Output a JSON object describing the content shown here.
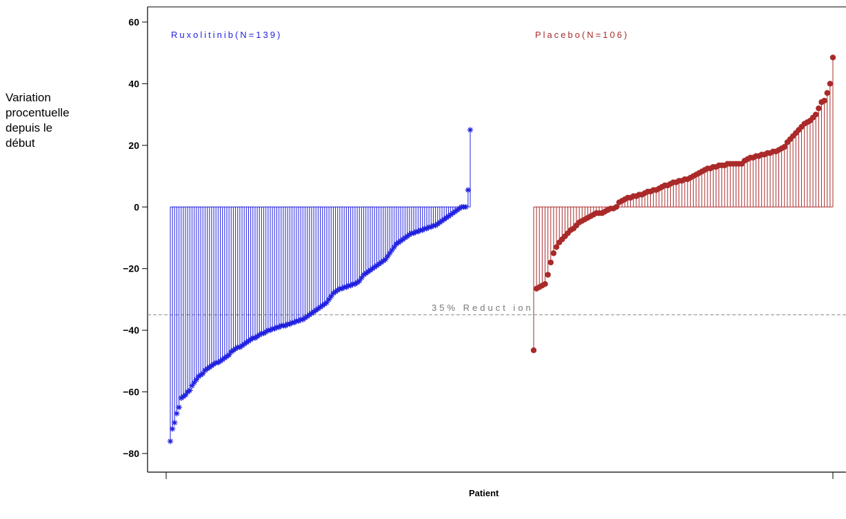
{
  "chart_data": {
    "type": "bar",
    "ylabel_lines": [
      "Variation",
      "procentuelle",
      "depuis le",
      "début"
    ],
    "xlabel": "Patient",
    "ylim": [
      -80,
      60
    ],
    "yticks": [
      60,
      40,
      20,
      0,
      -20,
      -40,
      -60,
      -80
    ],
    "reference_line": {
      "value": -35,
      "label": "35% Reduct ion"
    },
    "series": [
      {
        "name": "Ruxolitinib(N=139)",
        "color": "#1f1fe0",
        "marker": "asterisk",
        "values": [
          -76,
          -72,
          -70,
          -67,
          -65,
          -62,
          -61.5,
          -61,
          -60,
          -59.5,
          -58,
          -57,
          -56,
          -55,
          -54.5,
          -54,
          -53,
          -52.5,
          -52,
          -51.5,
          -51,
          -50.5,
          -50.5,
          -50,
          -49.5,
          -49,
          -48.5,
          -48,
          -47,
          -46.5,
          -46,
          -45.5,
          -45.5,
          -45,
          -44.5,
          -44,
          -43.5,
          -43,
          -42.5,
          -42.5,
          -42,
          -41.5,
          -41,
          -41,
          -40.5,
          -40,
          -40,
          -39.5,
          -39.5,
          -39,
          -39,
          -38.5,
          -38.5,
          -38.5,
          -38,
          -38,
          -37.5,
          -37.5,
          -37,
          -37,
          -36.5,
          -36.5,
          -36,
          -35.5,
          -35,
          -34.5,
          -34,
          -33.5,
          -33,
          -32.5,
          -32,
          -31.5,
          -31,
          -30,
          -29,
          -28,
          -27.5,
          -27,
          -26.5,
          -26.5,
          -26,
          -26,
          -25.5,
          -25.5,
          -25,
          -25,
          -24.5,
          -24,
          -23,
          -22,
          -21.5,
          -21,
          -20.5,
          -20,
          -19.5,
          -19,
          -18.5,
          -18,
          -17.5,
          -17,
          -16,
          -15,
          -14,
          -13,
          -12,
          -11.5,
          -11,
          -10.5,
          -10,
          -9.5,
          -9,
          -8.5,
          -8.5,
          -8,
          -8,
          -7.5,
          -7.5,
          -7,
          -7,
          -6.5,
          -6.5,
          -6,
          -6,
          -5.5,
          -5,
          -4.5,
          -4,
          -3.5,
          -3,
          -2.5,
          -2,
          -1.5,
          -1,
          -0.5,
          0,
          0,
          0,
          5.5,
          25
        ]
      },
      {
        "name": "Placebo(N=106)",
        "color": "#aa2a2a",
        "marker": "dot",
        "values": [
          -46.5,
          -26.5,
          -26,
          -25.5,
          -25,
          -22,
          -18,
          -15,
          -13,
          -11.5,
          -10.5,
          -9.5,
          -8.5,
          -7.5,
          -7,
          -6,
          -5,
          -4.5,
          -4,
          -3.5,
          -3,
          -2.5,
          -2,
          -2,
          -2,
          -1.5,
          -1,
          -0.5,
          -0.5,
          0,
          1.5,
          2,
          2.5,
          3,
          3,
          3.5,
          3.5,
          4,
          4,
          4.5,
          5,
          5,
          5.5,
          5.5,
          6,
          6.5,
          7,
          7,
          7.5,
          8,
          8,
          8.5,
          8.5,
          9,
          9,
          9.5,
          10,
          10.5,
          11,
          11.5,
          12,
          12.5,
          12.5,
          13,
          13,
          13.5,
          13.5,
          13.5,
          14,
          14,
          14,
          14,
          14,
          14,
          15,
          15.5,
          16,
          16,
          16.5,
          16.5,
          17,
          17,
          17.5,
          17.5,
          18,
          18,
          18.5,
          19,
          19.5,
          21,
          22,
          23,
          24,
          25,
          26,
          27,
          27.5,
          28,
          29,
          30,
          32,
          34,
          34.5,
          37,
          40,
          48.5
        ]
      }
    ]
  }
}
